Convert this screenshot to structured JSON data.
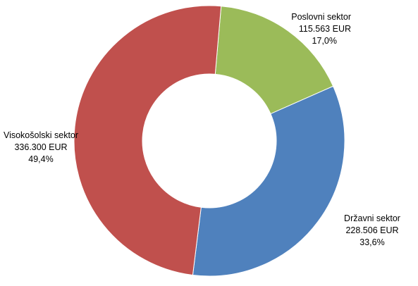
{
  "chart_data": {
    "type": "pie",
    "donut": true,
    "title": "",
    "legend": "none",
    "slices": [
      {
        "name": "Poslovni sektor",
        "value": 115563,
        "value_label": "115.563 EUR",
        "percent_label": "17,0%",
        "color": "#9BBB59"
      },
      {
        "name": "Državni sektor",
        "value": 228506,
        "value_label": "228.506 EUR",
        "percent_label": "33,6%",
        "color": "#4F81BD"
      },
      {
        "name": "Visokošolski sektor",
        "value": 336300,
        "value_label": "336.300 EUR",
        "percent_label": "49,4%",
        "color": "#C0504D"
      }
    ]
  }
}
